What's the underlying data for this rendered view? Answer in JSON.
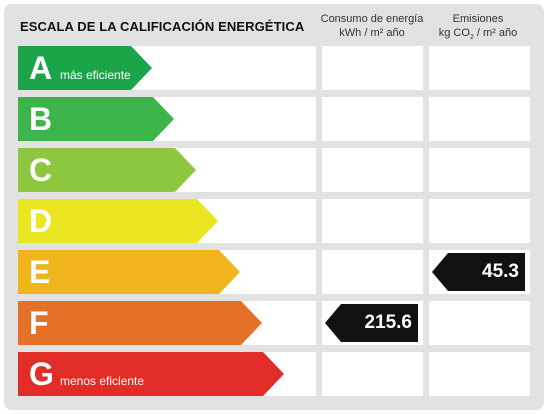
{
  "header": {
    "title": "ESCALA DE LA CALIFICACIÓN ENERGÉTICA",
    "consumo_line1": "Consumo de energía",
    "consumo_line2": "kWh / m² año",
    "emisiones_line1": "Emisiones",
    "emisiones_line2_prefix": "kg CO",
    "emisiones_line2_sub": "2",
    "emisiones_line2_suffix": " / m² año"
  },
  "ratings": [
    {
      "letter": "A",
      "note": "más eficiente",
      "color": "#1ba548"
    },
    {
      "letter": "B",
      "note": "",
      "color": "#3db54a"
    },
    {
      "letter": "C",
      "note": "",
      "color": "#8dc63f"
    },
    {
      "letter": "D",
      "note": "",
      "color": "#ebe622"
    },
    {
      "letter": "E",
      "note": "",
      "color": "#f0b51c"
    },
    {
      "letter": "F",
      "note": "",
      "color": "#e57129"
    },
    {
      "letter": "G",
      "note": "menos eficiente",
      "color": "#e22c27"
    }
  ],
  "values": {
    "consumo": {
      "rating": "F",
      "value": "215.6"
    },
    "emisiones": {
      "rating": "E",
      "value": "45.3"
    }
  },
  "tag_color": "#111111"
}
